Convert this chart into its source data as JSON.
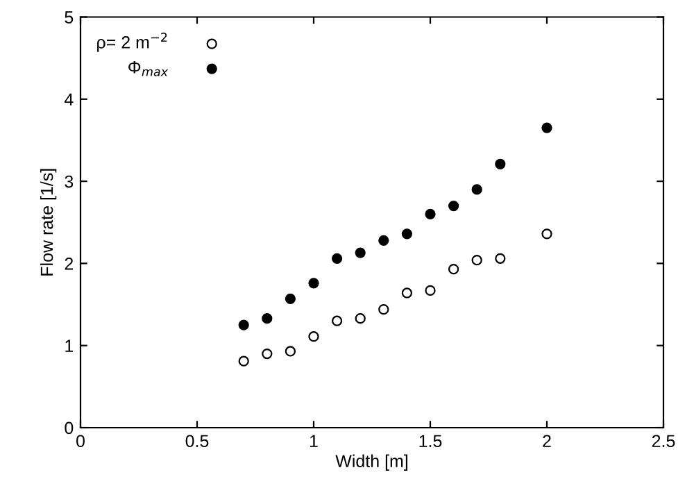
{
  "chart_data": {
    "type": "scatter",
    "xlabel": "Width [m]",
    "ylabel": "Flow rate [1/s]",
    "xlim": [
      0,
      2.5
    ],
    "ylim": [
      0,
      5
    ],
    "xticks": [
      0,
      0.5,
      1,
      1.5,
      2,
      2.5
    ],
    "yticks": [
      0,
      1,
      2,
      3,
      4,
      5
    ],
    "grid": false,
    "legend": "top left",
    "marker": "circle",
    "series": [
      {
        "name": "ρ= 2 m$^{−2}$",
        "color": "#ffffff",
        "x": [
          0.7,
          0.8,
          0.9,
          1.0,
          1.1,
          1.2,
          1.3,
          1.4,
          1.5,
          1.6,
          1.7,
          1.8,
          2.0
        ],
        "values": [
          0.81,
          0.9,
          0.93,
          1.11,
          1.3,
          1.33,
          1.44,
          1.64,
          1.67,
          1.93,
          2.04,
          2.06,
          2.36
        ]
      },
      {
        "name": "Φ$_{max}$",
        "color": "#000000",
        "x": [
          0.7,
          0.8,
          0.9,
          1.0,
          1.1,
          1.2,
          1.3,
          1.4,
          1.5,
          1.6,
          1.7,
          1.8,
          2.0
        ],
        "values": [
          1.25,
          1.33,
          1.57,
          1.76,
          2.06,
          2.13,
          2.28,
          2.36,
          2.6,
          2.7,
          2.9,
          3.21,
          3.65
        ]
      }
    ]
  }
}
